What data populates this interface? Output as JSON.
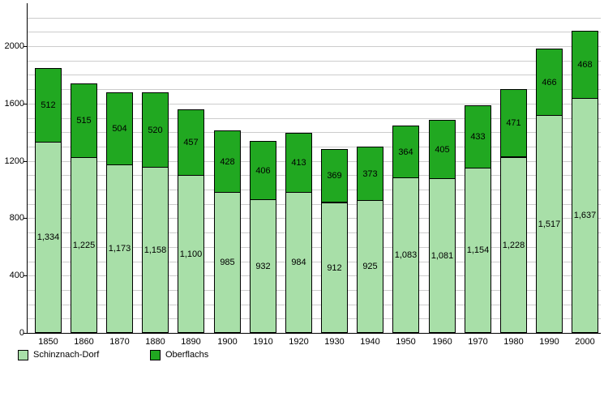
{
  "chart_data": {
    "type": "bar",
    "stacked": true,
    "title": "",
    "xlabel": "",
    "ylabel": "",
    "categories": [
      "1850",
      "1860",
      "1870",
      "1880",
      "1890",
      "1900",
      "1910",
      "1920",
      "1930",
      "1940",
      "1950",
      "1960",
      "1970",
      "1980",
      "1990",
      "2000"
    ],
    "series": [
      {
        "name": "Schinznach-Dorf",
        "color": "#a8dfa8",
        "values": [
          1334,
          1225,
          1173,
          1158,
          1100,
          985,
          932,
          984,
          912,
          925,
          1083,
          1081,
          1154,
          1228,
          1517,
          1637
        ]
      },
      {
        "name": "Oberflachs",
        "color": "#1fa41f",
        "values": [
          512,
          515,
          504,
          520,
          457,
          428,
          406,
          413,
          369,
          373,
          364,
          405,
          433,
          471,
          466,
          468
        ]
      }
    ],
    "series_colors": {
      "schinznach_dorf": "#a8dfa8",
      "oberflachs": "#21a821"
    },
    "ylim": [
      0,
      2255
    ],
    "yticks": [
      0,
      400,
      800,
      1200,
      1600,
      2000
    ],
    "grid_interval": 100,
    "grid_color": "#cccccc",
    "legend_position": "bottom",
    "legend_items": [
      {
        "label": "Schinznach-Dorf"
      },
      {
        "label": "Oberflachs"
      }
    ]
  }
}
